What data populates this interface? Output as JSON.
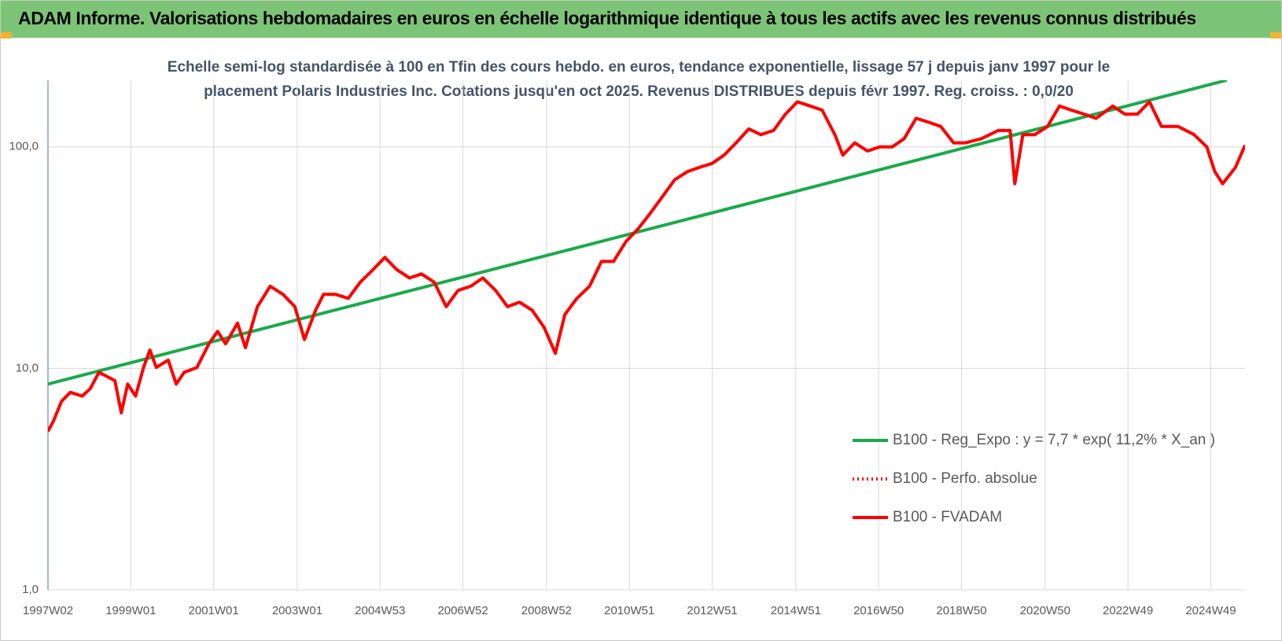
{
  "chart_data": {
    "type": "line",
    "title": "ADAM Informe. Valorisations hebdomadaires en euros en échelle logarithmique identique à tous les actifs avec les revenus connus distribués",
    "subtitle_lines": [
      "Echelle semi-log standardisée à 100 en Tfin des cours hebdo. en euros, tendance exponentielle, lissage 57 j depuis janv 1997 pour le",
      "placement Polaris Industries Inc. Cotations jusqu'en oct 2025. Revenus DISTRIBUES depuis févr 1997. Reg. croiss. : 0,0/20"
    ],
    "log_scale": true,
    "grid": true,
    "xlim": [
      0,
      1503
    ],
    "xticks": [
      {
        "value": 0,
        "label": "1997W02"
      },
      {
        "value": 104,
        "label": "1999W01"
      },
      {
        "value": 208,
        "label": "2001W01"
      },
      {
        "value": 313,
        "label": "2003W01"
      },
      {
        "value": 417,
        "label": "2004W53"
      },
      {
        "value": 521,
        "label": "2006W52"
      },
      {
        "value": 626,
        "label": "2008W52"
      },
      {
        "value": 730,
        "label": "2010W51"
      },
      {
        "value": 834,
        "label": "2012W51"
      },
      {
        "value": 939,
        "label": "2014W51"
      },
      {
        "value": 1043,
        "label": "2016W50"
      },
      {
        "value": 1147,
        "label": "2018W50"
      },
      {
        "value": 1252,
        "label": "2020W50"
      },
      {
        "value": 1356,
        "label": "2022W49"
      },
      {
        "value": 1460,
        "label": "2024W49"
      }
    ],
    "ylim": [
      1,
      200
    ],
    "yticks": [
      {
        "value": 1,
        "label": "1,0"
      },
      {
        "value": 10,
        "label": "10,0"
      },
      {
        "value": 100,
        "label": "100,0"
      }
    ],
    "series": [
      {
        "name": "B100 - Reg_Expo : y = 7,7 * exp( 11,2% *  X_an )",
        "color": "#1aaa4a",
        "line_style": "solid",
        "x": [
          0,
          1480
        ],
        "values": [
          8.5,
          200
        ]
      },
      {
        "name": "B100 - Perfo. absolue",
        "color": "#ff0000",
        "line_style": "dotted",
        "x": [
          0,
          7,
          17,
          28,
          43,
          53,
          64,
          74,
          84,
          92,
          100,
          110,
          120,
          128,
          136,
          151,
          161,
          171,
          187,
          202,
          213,
          223,
          238,
          248,
          263,
          279,
          295,
          310,
          322,
          336,
          346,
          361,
          377,
          392,
          408,
          423,
          438,
          454,
          469,
          485,
          500,
          515,
          531,
          546,
          562,
          577,
          592,
          608,
          623,
          637,
          649,
          664,
          680,
          695,
          710,
          726,
          741,
          757,
          772,
          787,
          803,
          818,
          834,
          849,
          864,
          880,
          895,
          911,
          926,
          941,
          957,
          972,
          988,
          998,
          1013,
          1029,
          1044,
          1060,
          1075,
          1090,
          1106,
          1121,
          1137,
          1152,
          1172,
          1193,
          1208,
          1214,
          1224,
          1239,
          1255,
          1270,
          1285,
          1301,
          1316,
          1337,
          1352,
          1368,
          1383,
          1398,
          1419,
          1439,
          1455,
          1465,
          1475,
          1491,
          1503
        ],
        "values": [
          5.2,
          5.8,
          7.1,
          7.8,
          7.5,
          8.1,
          9.6,
          9.2,
          8.8,
          6.3,
          8.5,
          7.5,
          10.1,
          12.1,
          10.1,
          10.9,
          8.5,
          9.6,
          10.1,
          12.9,
          14.7,
          12.9,
          16,
          12.4,
          19,
          23.5,
          21.6,
          19,
          13.5,
          18.3,
          21.6,
          21.6,
          20.7,
          24.5,
          27.9,
          31.7,
          27.9,
          25.6,
          26.7,
          24.5,
          19,
          22.5,
          23.5,
          25.6,
          22.5,
          19,
          19.9,
          18.3,
          15.3,
          11.7,
          17.5,
          20.7,
          23.5,
          30.4,
          30.4,
          37.5,
          42.7,
          50.6,
          60,
          71.1,
          77.4,
          80.8,
          84.3,
          91.8,
          104.3,
          120.6,
          113.6,
          118.6,
          140.6,
          159.9,
          153,
          146.6,
          113.6,
          91.8,
          104.3,
          95.8,
          100,
          100,
          108.9,
          134.6,
          129.1,
          123.7,
          104.3,
          104.3,
          108.9,
          118.6,
          118.6,
          68.2,
          113.6,
          113.6,
          123.7,
          153,
          146.6,
          140.6,
          134.6,
          153,
          140.6,
          140.6,
          159.9,
          123.7,
          123.7,
          113.6,
          100,
          77.4,
          68.2,
          80.8,
          101.7
        ]
      },
      {
        "name": "B100 - FVADAM",
        "color": "#ff0000",
        "line_style": "solid",
        "x": [
          0,
          7,
          17,
          28,
          43,
          53,
          64,
          74,
          84,
          92,
          100,
          110,
          120,
          128,
          136,
          151,
          161,
          171,
          187,
          202,
          213,
          223,
          238,
          248,
          263,
          279,
          295,
          310,
          322,
          336,
          346,
          361,
          377,
          392,
          408,
          423,
          438,
          454,
          469,
          485,
          500,
          515,
          531,
          546,
          562,
          577,
          592,
          608,
          623,
          637,
          649,
          664,
          680,
          695,
          710,
          726,
          741,
          757,
          772,
          787,
          803,
          818,
          834,
          849,
          864,
          880,
          895,
          911,
          926,
          941,
          957,
          972,
          988,
          998,
          1013,
          1029,
          1044,
          1060,
          1075,
          1090,
          1106,
          1121,
          1137,
          1152,
          1172,
          1193,
          1208,
          1214,
          1224,
          1239,
          1255,
          1270,
          1285,
          1301,
          1316,
          1337,
          1352,
          1368,
          1383,
          1398,
          1419,
          1439,
          1455,
          1465,
          1475,
          1491,
          1503
        ],
        "values": [
          5.2,
          5.8,
          7.1,
          7.8,
          7.5,
          8.1,
          9.6,
          9.2,
          8.8,
          6.3,
          8.5,
          7.5,
          10.1,
          12.1,
          10.1,
          10.9,
          8.5,
          9.6,
          10.1,
          12.9,
          14.7,
          12.9,
          16,
          12.4,
          19,
          23.5,
          21.6,
          19,
          13.5,
          18.3,
          21.6,
          21.6,
          20.7,
          24.5,
          27.9,
          31.7,
          27.9,
          25.6,
          26.7,
          24.5,
          19,
          22.5,
          23.5,
          25.6,
          22.5,
          19,
          19.9,
          18.3,
          15.3,
          11.7,
          17.5,
          20.7,
          23.5,
          30.4,
          30.4,
          37.5,
          42.7,
          50.6,
          60,
          71.1,
          77.4,
          80.8,
          84.3,
          91.8,
          104.3,
          120.6,
          113.6,
          118.6,
          140.6,
          159.9,
          153,
          146.6,
          113.6,
          91.8,
          104.3,
          95.8,
          100,
          100,
          108.9,
          134.6,
          129.1,
          123.7,
          104.3,
          104.3,
          108.9,
          118.6,
          118.6,
          68.2,
          113.6,
          113.6,
          123.7,
          153,
          146.6,
          140.6,
          134.6,
          153,
          140.6,
          140.6,
          159.9,
          123.7,
          123.7,
          113.6,
          100,
          77.4,
          68.2,
          80.8,
          101.7
        ]
      }
    ]
  }
}
